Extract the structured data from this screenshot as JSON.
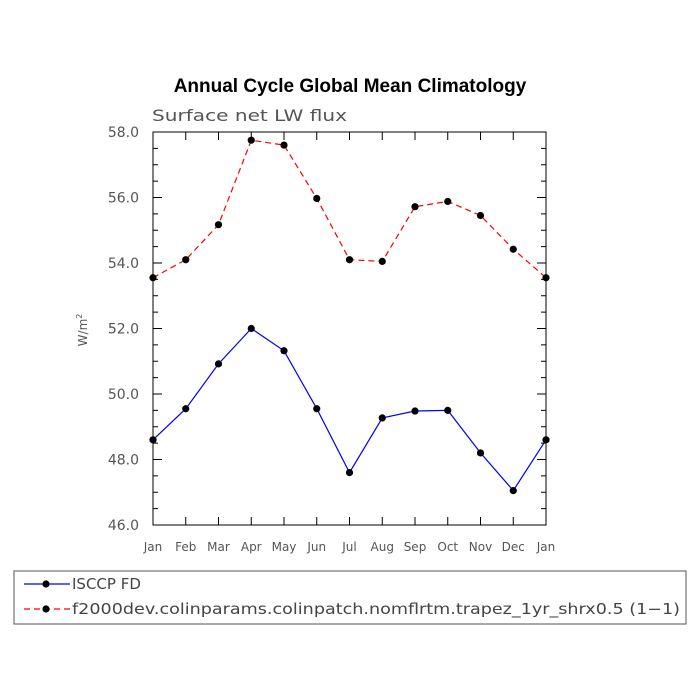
{
  "chart_data": {
    "type": "line",
    "title": "Annual Cycle Global Mean Climatology",
    "subtitle": "Surface net LW flux",
    "xlabel": "",
    "ylabel": "W/m",
    "ylabel_superscript": "2",
    "categories": [
      "Jan",
      "Feb",
      "Mar",
      "Apr",
      "May",
      "Jun",
      "Jul",
      "Aug",
      "Sep",
      "Oct",
      "Nov",
      "Dec",
      "Jan"
    ],
    "ylim": [
      46.0,
      58.0
    ],
    "yticks": [
      "46.0",
      "48.0",
      "50.0",
      "52.0",
      "54.0",
      "56.0",
      "58.0"
    ],
    "grid": false,
    "legend_position": "bottom",
    "series": [
      {
        "name": "ISCCP FD",
        "color": "#0000ff",
        "dash": "solid",
        "values": [
          48.6,
          49.55,
          50.92,
          52.0,
          51.32,
          49.55,
          47.6,
          49.27,
          49.48,
          49.5,
          48.2,
          47.05,
          48.6
        ]
      },
      {
        "name": "f2000dev.colinparams.colinpatch.nomflrtm.trapez_1yr_shrx0.5 (1−1)",
        "color": "#ff0000",
        "dash": "dashed",
        "values": [
          53.55,
          54.1,
          55.17,
          57.75,
          57.6,
          55.97,
          54.1,
          54.05,
          55.72,
          55.88,
          55.45,
          54.42,
          53.55
        ]
      }
    ]
  }
}
